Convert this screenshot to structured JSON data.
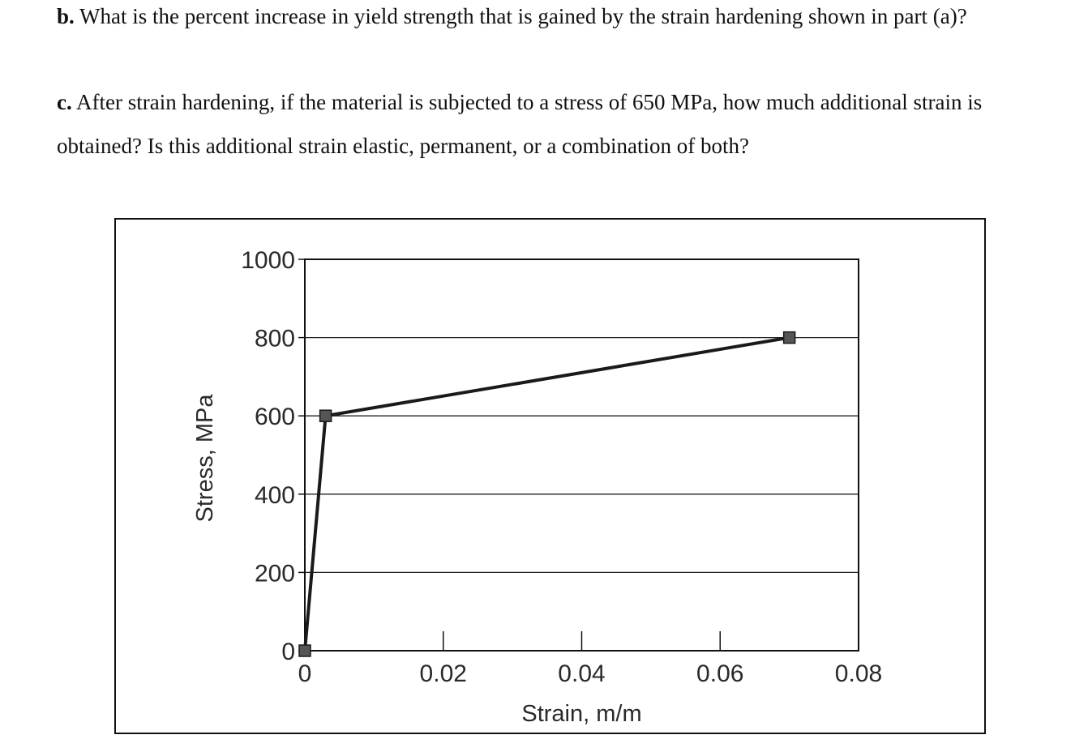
{
  "questions": {
    "b": {
      "label": "b.",
      "text": " What is the percent increase in yield strength that is gained by the strain hardening shown in part (a)?"
    },
    "c": {
      "label": "c.",
      "text": " After strain hardening, if the material is subjected to a stress of 650 MPa, how much additional strain is obtained? Is this additional strain elastic, permanent, or a combination of both?"
    }
  },
  "chart_data": {
    "type": "line",
    "title": "",
    "xlabel": "Strain, m/m",
    "ylabel": "Stress, MPa",
    "xlim": [
      0,
      0.08
    ],
    "ylim": [
      0,
      1000
    ],
    "x_ticks": [
      0,
      0.02,
      0.04,
      0.06,
      0.08
    ],
    "x_tick_labels": [
      "0",
      "0.02",
      "0.04",
      "0.06",
      "0.08"
    ],
    "y_ticks": [
      0,
      200,
      400,
      600,
      800,
      1000
    ],
    "y_tick_labels": [
      "0",
      "200",
      "400",
      "600",
      "800",
      "1000"
    ],
    "grid": "horizontal",
    "marker": "square",
    "series": [
      {
        "points": [
          {
            "x": 0,
            "y": 0
          },
          {
            "x": 0.003,
            "y": 600
          },
          {
            "x": 0.07,
            "y": 800
          }
        ]
      }
    ],
    "colors": {
      "line": "#1a1a1a",
      "marker": "#555555",
      "grid": "#222222",
      "frame": "#111111"
    }
  }
}
